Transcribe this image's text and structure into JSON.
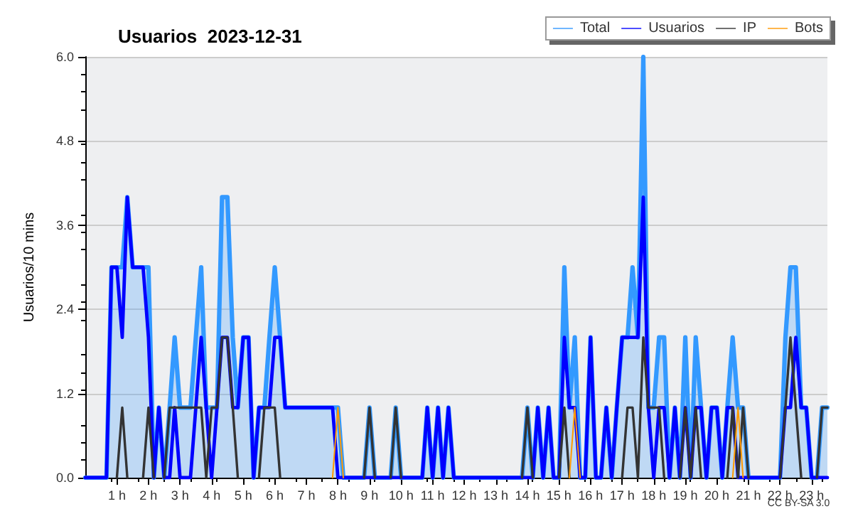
{
  "chart_data": {
    "type": "line",
    "title": "Usuarios  2023-12-31",
    "ylabel": "Usuarios/10 mins",
    "annotations": [
      "CC BY-SA 3.0"
    ],
    "x": [
      0,
      0.17,
      0.33,
      0.5,
      0.67,
      0.83,
      1,
      1.17,
      1.33,
      1.5,
      1.67,
      1.83,
      2,
      2.17,
      2.33,
      2.5,
      2.67,
      2.83,
      3,
      3.17,
      3.33,
      3.5,
      3.67,
      3.83,
      4,
      4.17,
      4.33,
      4.5,
      4.67,
      4.83,
      5,
      5.17,
      5.33,
      5.5,
      5.67,
      5.83,
      6,
      6.17,
      6.33,
      6.5,
      6.67,
      6.83,
      7,
      7.17,
      7.33,
      7.5,
      7.67,
      7.83,
      8,
      8.17,
      8.33,
      8.5,
      8.67,
      8.83,
      9,
      9.17,
      9.33,
      9.5,
      9.67,
      9.83,
      10,
      10.17,
      10.33,
      10.5,
      10.67,
      10.83,
      11,
      11.17,
      11.33,
      11.5,
      11.67,
      11.83,
      12,
      12.17,
      12.33,
      12.5,
      12.67,
      12.83,
      13,
      13.17,
      13.33,
      13.5,
      13.67,
      13.83,
      14,
      14.17,
      14.33,
      14.5,
      14.67,
      14.83,
      15,
      15.17,
      15.33,
      15.5,
      15.67,
      15.83,
      16,
      16.17,
      16.33,
      16.5,
      16.67,
      16.83,
      17,
      17.17,
      17.33,
      17.5,
      17.67,
      17.83,
      18,
      18.17,
      18.33,
      18.5,
      18.67,
      18.83,
      19,
      19.17,
      19.33,
      19.5,
      19.67,
      19.83,
      20,
      20.17,
      20.33,
      20.5,
      20.67,
      20.83,
      21,
      21.17,
      21.33,
      21.5,
      21.67,
      21.83,
      22,
      22.17,
      22.33,
      22.5,
      22.67,
      22.83,
      23,
      23.17,
      23.33,
      23.5
    ],
    "series": [
      {
        "name": "Total",
        "type": "area",
        "color": "#3399ff",
        "values": [
          0,
          0,
          0,
          0,
          0,
          3,
          3,
          3,
          4,
          3,
          3,
          3,
          3,
          0,
          1,
          0,
          1,
          2,
          1,
          1,
          1,
          2,
          3,
          1,
          1,
          1,
          4,
          4,
          2,
          1,
          2,
          2,
          0,
          1,
          1,
          2,
          3,
          2,
          1,
          1,
          1,
          1,
          1,
          1,
          1,
          1,
          1,
          1,
          1,
          0,
          0,
          0,
          0,
          0,
          1,
          0,
          0,
          0,
          0,
          1,
          0,
          0,
          0,
          0,
          0,
          1,
          0,
          1,
          0,
          1,
          0,
          0,
          0,
          0,
          0,
          0,
          0,
          0,
          0,
          0,
          0,
          0,
          0,
          0,
          1,
          0,
          1,
          0,
          1,
          0,
          0,
          3,
          1,
          2,
          0,
          0,
          2,
          0,
          0,
          1,
          0,
          1,
          2,
          2,
          3,
          2,
          6,
          1,
          1,
          2,
          2,
          0,
          1,
          0,
          2,
          0,
          2,
          1,
          0,
          1,
          1,
          0,
          1,
          2,
          1,
          1,
          0,
          0,
          0,
          0,
          0,
          0,
          0,
          2,
          3,
          3,
          1,
          1,
          0,
          0,
          1,
          1
        ]
      },
      {
        "name": "Usuarios",
        "type": "line",
        "color": "#0000ff",
        "values": [
          0,
          0,
          0,
          0,
          0,
          3,
          3,
          2,
          4,
          3,
          3,
          3,
          2,
          0,
          1,
          0,
          0,
          1,
          0,
          0,
          0,
          1,
          2,
          1,
          0,
          1,
          2,
          2,
          1,
          1,
          2,
          2,
          0,
          1,
          1,
          1,
          2,
          2,
          1,
          1,
          1,
          1,
          1,
          1,
          1,
          1,
          1,
          1,
          0,
          0,
          0,
          0,
          0,
          0,
          0,
          0,
          0,
          0,
          0,
          0,
          0,
          0,
          0,
          0,
          0,
          1,
          0,
          1,
          0,
          1,
          0,
          0,
          0,
          0,
          0,
          0,
          0,
          0,
          0,
          0,
          0,
          0,
          0,
          0,
          0,
          0,
          1,
          0,
          1,
          0,
          0,
          2,
          1,
          1,
          0,
          0,
          2,
          0,
          0,
          1,
          0,
          1,
          2,
          2,
          2,
          2,
          4,
          1,
          0,
          1,
          1,
          0,
          1,
          0,
          1,
          0,
          1,
          1,
          0,
          1,
          1,
          0,
          1,
          1,
          0,
          0,
          0,
          0,
          0,
          0,
          0,
          0,
          0,
          1,
          1,
          2,
          1,
          1,
          0,
          0,
          0,
          0
        ]
      },
      {
        "name": "IP",
        "type": "line",
        "color": "#333333",
        "values": [
          null,
          null,
          null,
          null,
          null,
          null,
          0,
          1,
          0,
          null,
          null,
          0,
          1,
          0,
          null,
          0,
          1,
          1,
          1,
          1,
          1,
          1,
          1,
          0,
          1,
          1,
          2,
          2,
          1,
          0,
          null,
          null,
          null,
          0,
          1,
          1,
          1,
          0,
          null,
          null,
          null,
          null,
          null,
          null,
          null,
          null,
          null,
          null,
          null,
          null,
          null,
          null,
          null,
          0,
          1,
          0,
          null,
          null,
          0,
          1,
          0,
          null,
          null,
          null,
          null,
          null,
          null,
          null,
          null,
          null,
          null,
          null,
          null,
          null,
          null,
          null,
          null,
          null,
          null,
          null,
          null,
          null,
          null,
          0,
          1,
          0,
          null,
          null,
          null,
          null,
          0,
          1,
          0,
          null,
          null,
          null,
          null,
          null,
          null,
          null,
          null,
          null,
          0,
          1,
          1,
          0,
          2,
          1,
          1,
          1,
          0,
          null,
          null,
          0,
          1,
          0,
          1,
          0,
          null,
          null,
          null,
          null,
          0,
          1,
          0,
          1,
          0,
          null,
          null,
          null,
          null,
          null,
          0,
          1,
          2,
          1,
          0,
          null,
          null,
          0,
          1,
          1
        ]
      },
      {
        "name": "Bots",
        "type": "line",
        "color": "#ff9900",
        "values": [
          null,
          null,
          null,
          null,
          null,
          null,
          null,
          null,
          null,
          null,
          null,
          null,
          null,
          null,
          null,
          null,
          null,
          null,
          null,
          null,
          null,
          null,
          null,
          null,
          null,
          null,
          null,
          null,
          null,
          null,
          null,
          null,
          null,
          null,
          null,
          null,
          null,
          null,
          null,
          null,
          null,
          null,
          null,
          null,
          null,
          null,
          null,
          0,
          1,
          0,
          null,
          null,
          null,
          null,
          null,
          null,
          null,
          null,
          null,
          null,
          null,
          null,
          null,
          null,
          null,
          null,
          null,
          null,
          null,
          null,
          null,
          null,
          null,
          null,
          null,
          null,
          null,
          null,
          null,
          null,
          null,
          null,
          null,
          null,
          null,
          null,
          null,
          null,
          null,
          null,
          null,
          null,
          0,
          1,
          0,
          null,
          null,
          null,
          null,
          null,
          null,
          null,
          null,
          null,
          null,
          null,
          null,
          null,
          null,
          null,
          null,
          null,
          null,
          null,
          null,
          null,
          null,
          null,
          null,
          null,
          null,
          null,
          null,
          0,
          1,
          0,
          null,
          null,
          null,
          null,
          null,
          null,
          null,
          null,
          null,
          null,
          null,
          null,
          null,
          null,
          null,
          null
        ]
      }
    ],
    "xlim": [
      0,
      23.5
    ],
    "xticks": [
      {
        "value": 1,
        "label": "1 h"
      },
      {
        "value": 2,
        "label": "2 h"
      },
      {
        "value": 3,
        "label": "3 h"
      },
      {
        "value": 4,
        "label": "4 h"
      },
      {
        "value": 5,
        "label": "5 h"
      },
      {
        "value": 6,
        "label": "6 h"
      },
      {
        "value": 7,
        "label": "7 h"
      },
      {
        "value": 8,
        "label": "8 h"
      },
      {
        "value": 9,
        "label": "9 h"
      },
      {
        "value": 10,
        "label": "10 h"
      },
      {
        "value": 11,
        "label": "11 h"
      },
      {
        "value": 12,
        "label": "12 h"
      },
      {
        "value": 13,
        "label": "13 h"
      },
      {
        "value": 14,
        "label": "14 h"
      },
      {
        "value": 15,
        "label": "15 h"
      },
      {
        "value": 16,
        "label": "16 h"
      },
      {
        "value": 17,
        "label": "17 h"
      },
      {
        "value": 18,
        "label": "18 h"
      },
      {
        "value": 19,
        "label": "19 h"
      },
      {
        "value": 20,
        "label": "20 h"
      },
      {
        "value": 21,
        "label": "21 h"
      },
      {
        "value": 22,
        "label": "22 h"
      },
      {
        "value": 23,
        "label": "23 h"
      }
    ],
    "ylim": [
      0,
      6
    ],
    "yticks": [
      {
        "value": 0,
        "label": "0.0"
      },
      1.2,
      2.4,
      3.6,
      4.8,
      {
        "value": 6,
        "label": "6.0"
      }
    ],
    "grid": "y",
    "legend": "top right",
    "marker": "none",
    "line_style": "solid"
  }
}
